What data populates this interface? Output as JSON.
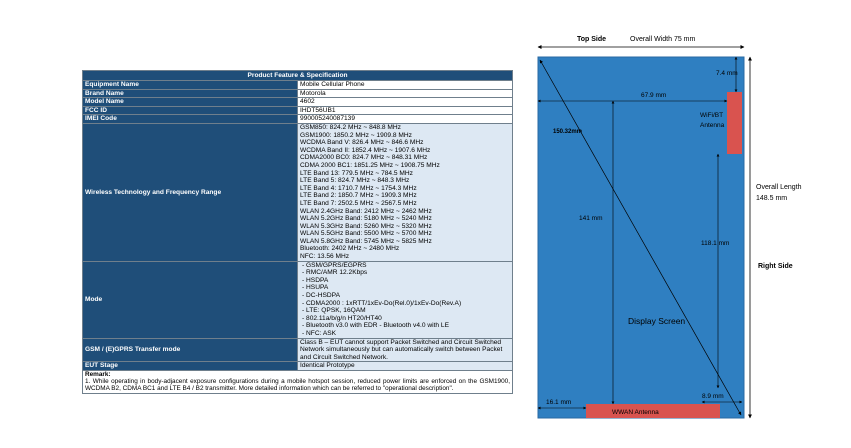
{
  "spec_table": {
    "title": "Product Feature & Specification",
    "rows": [
      {
        "label": "Equipment Name",
        "value": "Mobile Cellular Phone"
      },
      {
        "label": "Brand Name",
        "value": "Motorola"
      },
      {
        "label": "Model Name",
        "value": "4602"
      },
      {
        "label": "FCC ID",
        "value": "IHDT56UB1"
      },
      {
        "label": "IMEI Code",
        "value": "990005240087139"
      }
    ],
    "wireless": {
      "label": "Wireless Technology and Frequency Range",
      "lines": [
        "GSM850: 824.2 MHz ~ 848.8 MHz",
        "GSM1900: 1850.2 MHz ~ 1909.8 MHz",
        "WCDMA Band V: 826.4 MHz ~ 846.6 MHz",
        "WCDMA Band II: 1852.4 MHz ~ 1907.6 MHz",
        "CDMA2000 BC0: 824.7 MHz ~ 848.31 MHz",
        "CDMA 2000 BC1: 1851.25 MHz ~ 1908.75 MHz",
        "LTE Band 13: 779.5 MHz ~ 784.5 MHz",
        "LTE Band 5: 824.7 MHz ~ 848.3 MHz",
        "LTE Band 4: 1710.7 MHz ~ 1754.3 MHz",
        "LTE Band 2: 1850.7 MHz ~ 1909.3 MHz",
        "LTE Band 7: 2502.5 MHz ~ 2567.5 MHz",
        "WLAN 2.4GHz Band: 2412 MHz ~ 2462 MHz",
        "WLAN 5.2GHz Band: 5180 MHz ~ 5240 MHz",
        "WLAN 5.3GHz Band: 5260 MHz ~ 5320 MHz",
        "WLAN 5.5GHz Band: 5500 MHz ~ 5700 MHz",
        "WLAN 5.8GHz Band: 5745 MHz ~ 5825 MHz",
        "Bluetooth: 2402 MHz ~ 2480 MHz",
        "NFC: 13.56 MHz"
      ]
    },
    "mode": {
      "label": "Mode",
      "lines": [
        "- GSM/GPRS/EGPRS",
        "- RMC/AMR 12.2Kbps",
        "- HSDPA",
        "- HSUPA",
        "- DC-HSDPA",
        "- CDMA2000 : 1xRTT/1xEv-Do(Rel.0)/1xEv-Do(Rev.A)",
        "- LTE: QPSK, 16QAM",
        "- 802.11a/b/g/n HT20/HT40",
        "- Bluetooth v3.0 with EDR - Bluetooth v4.0 with LE",
        "- NFC: ASK"
      ]
    },
    "gsm_transfer": {
      "label": "GSM / (E)GPRS Transfer mode",
      "value": "Class B – EUT cannot support Packet Switched and Circuit Switched Network simultaneously but can automatically switch between Packet and Circuit Switched Network."
    },
    "eut_stage": {
      "label": "EUT Stage",
      "value": "Identical Prototype"
    },
    "remark": {
      "heading": "Remark:",
      "text": "1.   While operating in body-adjacent exposure configurations during a mobile hotspot session, reduced power limits are enforced on the GSM1900, WCDMA B2, CDMA BC1 and LTE B4 / B2 transmitter. More detailed information which can be referred to \"operational description\"."
    }
  },
  "diagram": {
    "top_side": "Top Side",
    "overall_width": "Overall Width 75 mm",
    "right_side": "Right Side",
    "overall_length": "Overall Length",
    "overall_length_value": "148.5 mm",
    "dim_7_4": "7.4 mm",
    "dim_67_9": "67.9 mm",
    "dim_150_32": "150.32mm",
    "dim_141": "141 mm",
    "dim_118_1": "118.1 mm",
    "dim_8_9": "8.9 mm",
    "dim_16_1": "16.1 mm",
    "wifi_bt_line1": "WiFi/BT",
    "wifi_bt_line2": "Antenna",
    "display_screen": "Display Screen",
    "wwan_antenna": "WWAN Antenna",
    "colors": {
      "phone_body": "#2f7fc1",
      "antenna": "#d9534f"
    }
  }
}
